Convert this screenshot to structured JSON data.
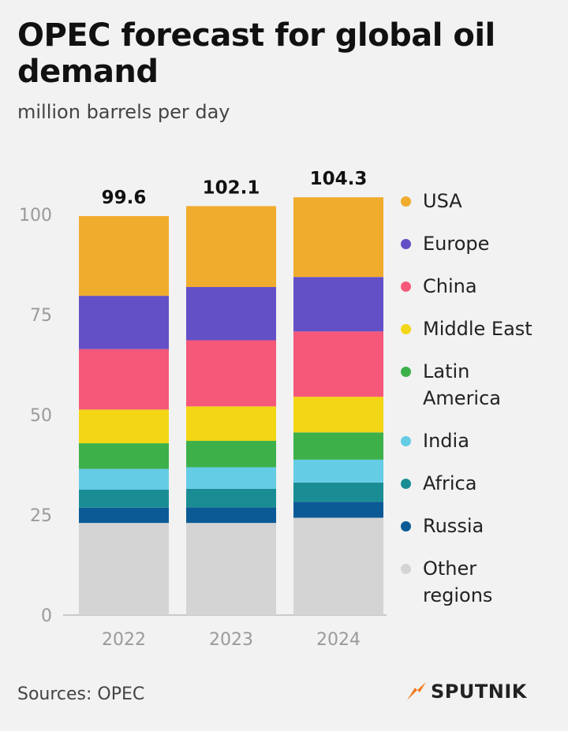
{
  "header": {
    "title": "OPEC forecast for global oil demand",
    "subtitle": "million barrels per day"
  },
  "footer": {
    "source": "Sources: OPEC",
    "logo_text": "SPUTNIK",
    "logo_color": "#f47920"
  },
  "chart_data": {
    "type": "bar",
    "stacked": true,
    "categories": [
      "2022",
      "2023",
      "2024"
    ],
    "totals": [
      "99.6",
      "102.1",
      "104.3"
    ],
    "ylim": [
      0,
      105
    ],
    "yticks": [
      0,
      25,
      50,
      75,
      100
    ],
    "grid": false,
    "legend_position": "right",
    "series": [
      {
        "name": "Other regions",
        "color": "#d4d4d4",
        "values": [
          23.0,
          23.0,
          24.3
        ]
      },
      {
        "name": "Russia",
        "color": "#0b5a96",
        "values": [
          3.8,
          3.9,
          4.0
        ]
      },
      {
        "name": "Africa",
        "color": "#1a8d94",
        "values": [
          4.5,
          4.6,
          4.8
        ]
      },
      {
        "name": "India",
        "color": "#65cce5",
        "values": [
          5.2,
          5.4,
          5.7
        ]
      },
      {
        "name": "Latin America",
        "color": "#3db04a",
        "values": [
          6.4,
          6.6,
          6.8
        ]
      },
      {
        "name": "Middle East",
        "color": "#f3d616",
        "values": [
          8.4,
          8.6,
          8.9
        ]
      },
      {
        "name": "China",
        "color": "#f6587a",
        "values": [
          15.1,
          16.5,
          16.3
        ]
      },
      {
        "name": "Europe",
        "color": "#6450c6",
        "values": [
          13.3,
          13.3,
          13.6
        ]
      },
      {
        "name": "USA",
        "color": "#f0ac2d",
        "values": [
          19.9,
          20.2,
          19.9
        ]
      }
    ]
  }
}
